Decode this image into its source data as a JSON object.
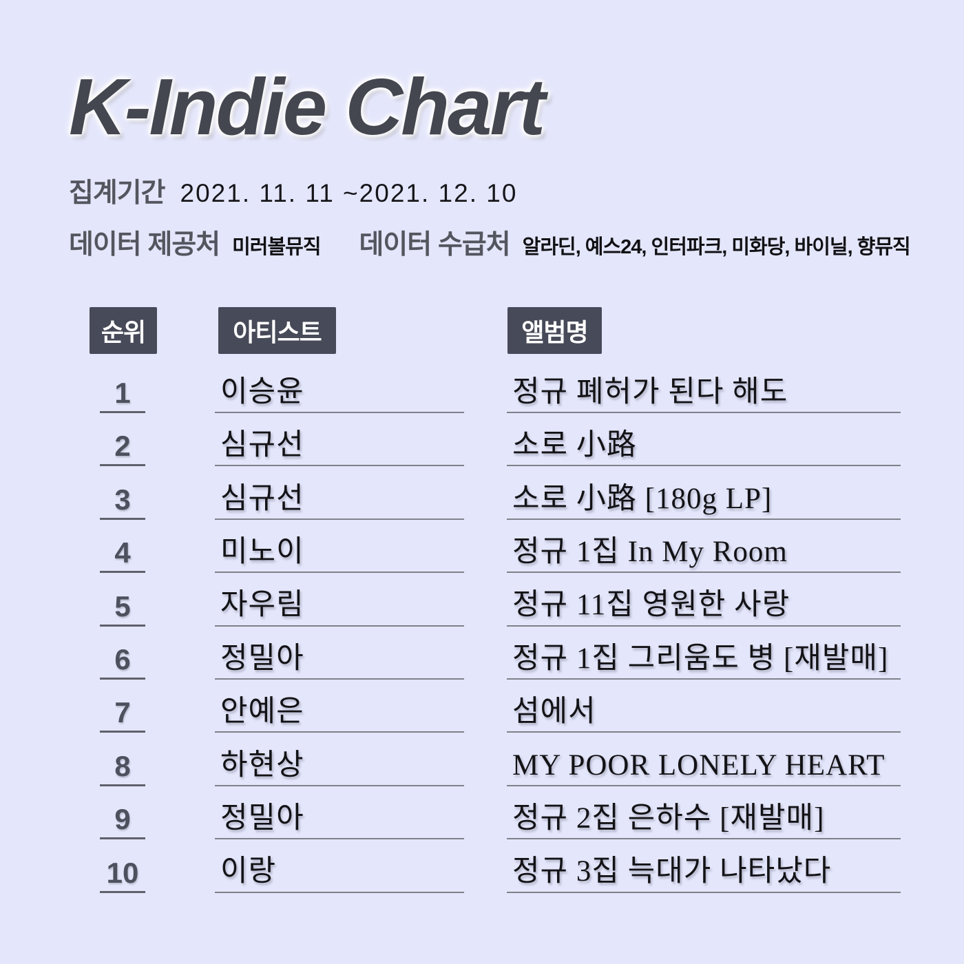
{
  "page": {
    "title": "K-Indie Chart"
  },
  "colors": {
    "background": "#e4e6fb",
    "badge_background": "#474a58",
    "badge_text": "#ffffff",
    "title_text": "#44474f",
    "label_text": "#54565f",
    "body_text": "#131316",
    "underline": "#7f818a"
  },
  "meta": {
    "period_label": "집계기간",
    "period_value": "2021. 11. 11 ~2021. 12. 10",
    "provider_label": "데이터 제공처",
    "provider_value": "미러볼뮤직",
    "source_label": "데이터 수급처",
    "source_value": "알라딘, 예스24, 인터파크, 미화당, 바이닐, 향뮤직"
  },
  "table": {
    "headers": {
      "rank": "순위",
      "artist": "아티스트",
      "album": "앨범명"
    },
    "rows": [
      {
        "rank": "1",
        "artist": "이승윤",
        "album": "정규 폐허가 된다 해도"
      },
      {
        "rank": "2",
        "artist": "심규선",
        "album": "소로 小路"
      },
      {
        "rank": "3",
        "artist": "심규선",
        "album": "소로 小路 [180g LP]"
      },
      {
        "rank": "4",
        "artist": "미노이",
        "album": "정규 1집 In My Room"
      },
      {
        "rank": "5",
        "artist": "자우림",
        "album": "정규 11집 영원한 사랑"
      },
      {
        "rank": "6",
        "artist": "정밀아",
        "album": "정규 1집 그리움도 병 [재발매]"
      },
      {
        "rank": "7",
        "artist": "안예은",
        "album": "섬에서"
      },
      {
        "rank": "8",
        "artist": "하현상",
        "album": "MY POOR LONELY HEART"
      },
      {
        "rank": "9",
        "artist": "정밀아",
        "album": "정규 2집 은하수 [재발매]"
      },
      {
        "rank": "10",
        "artist": "이랑",
        "album": "정규 3집 늑대가 나타났다"
      }
    ]
  },
  "chart_data": {
    "type": "table",
    "title": "K-Indie Chart",
    "period": "2021. 11. 11 ~2021. 12. 10",
    "data_provider": "미러볼뮤직",
    "data_sources": [
      "알라딘",
      "예스24",
      "인터파크",
      "미화당",
      "바이닐",
      "향뮤직"
    ],
    "columns": [
      "순위",
      "아티스트",
      "앨범명"
    ],
    "rows": [
      [
        "1",
        "이승윤",
        "정규 폐허가 된다 해도"
      ],
      [
        "2",
        "심규선",
        "소로 小路"
      ],
      [
        "3",
        "심규선",
        "소로 小路 [180g LP]"
      ],
      [
        "4",
        "미노이",
        "정규 1집 In My Room"
      ],
      [
        "5",
        "자우림",
        "정규 11집 영원한 사랑"
      ],
      [
        "6",
        "정밀아",
        "정규 1집 그리움도 병 [재발매]"
      ],
      [
        "7",
        "안예은",
        "섬에서"
      ],
      [
        "8",
        "하현상",
        "MY POOR LONELY HEART"
      ],
      [
        "9",
        "정밀아",
        "정규 2집 은하수 [재발매]"
      ],
      [
        "10",
        "이랑",
        "정규 3집 늑대가 나타났다"
      ]
    ]
  }
}
